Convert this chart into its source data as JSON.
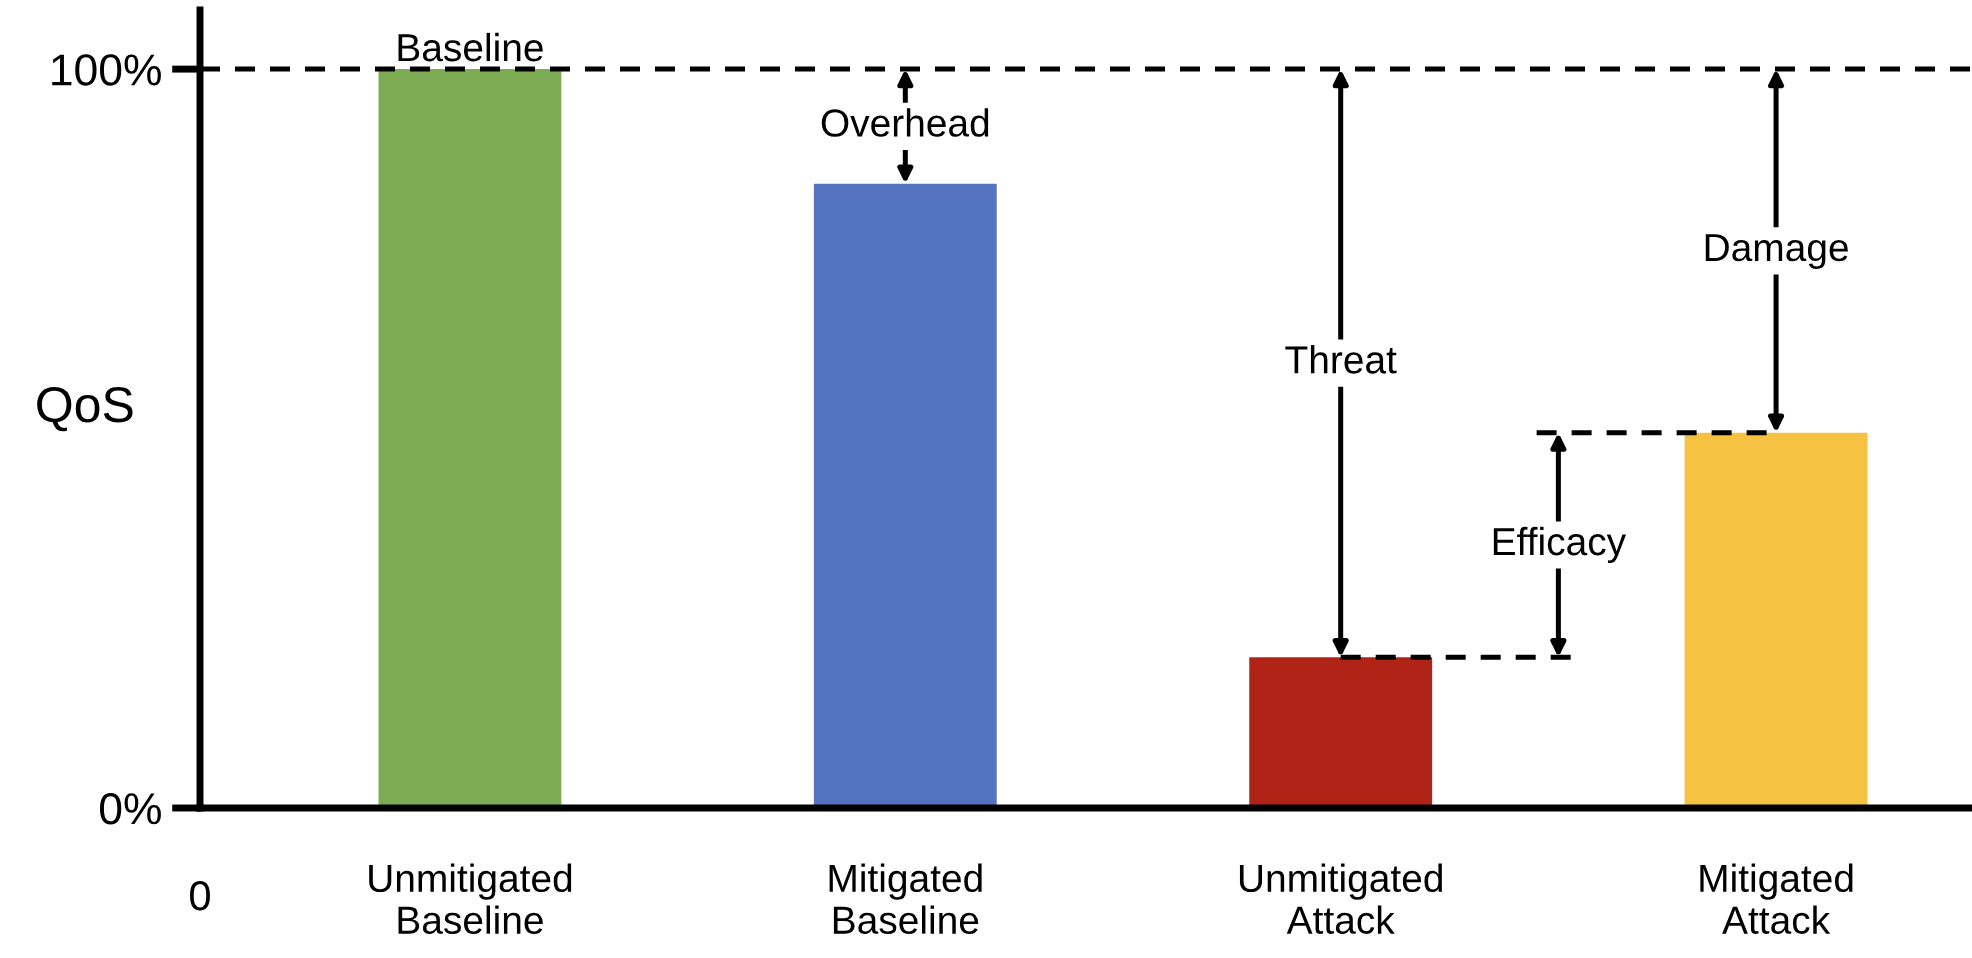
{
  "chart_data": {
    "type": "bar",
    "ylabel": "QoS",
    "categories": [
      "Unmitigated\nBaseline",
      "Mitigated\nBaseline",
      "Unmitigated\nAttack",
      "Mitigated\nAttack"
    ],
    "values": [
      100,
      84.5,
      20.4,
      50.8
    ],
    "colors": [
      "#7dac55",
      "#5473c0",
      "#b02418",
      "#f5c242"
    ],
    "ylim": [
      0,
      108
    ],
    "yticks": [
      {
        "value": 0,
        "label": "0%"
      },
      {
        "value": 100,
        "label": "100%"
      }
    ],
    "ref_lines": [
      {
        "axis": "y",
        "value": 100,
        "color": "#000000",
        "line_style": "dashed"
      }
    ],
    "annotations": [
      "Baseline",
      "Overhead",
      "Threat",
      "Efficacy",
      "Damage",
      "0"
    ],
    "grid": false,
    "legend": false
  }
}
